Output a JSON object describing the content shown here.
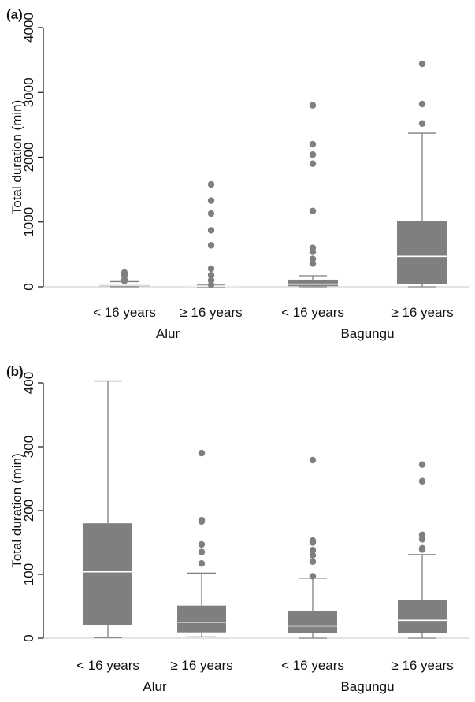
{
  "colors": {
    "box_fill": "#7f7f7f",
    "median_line": "#ffffff",
    "outlier": "#7f7f7f",
    "whisker": "#7f7f7f",
    "axis": "#111111",
    "baseline": "#c8c8c8"
  },
  "chart_data": [
    {
      "type": "box",
      "panel_label": "(a)",
      "ylabel": "Total duration (min)",
      "ylim": [
        0,
        4000
      ],
      "yticks": [
        0,
        1000,
        2000,
        3000,
        4000
      ],
      "grid": false,
      "groups": [
        "Alur",
        "Bagungu"
      ],
      "categories": [
        "< 16 years",
        "≥ 16 years",
        "< 16 years",
        "≥ 16 years"
      ],
      "category_group": [
        0,
        0,
        1,
        1
      ],
      "boxes": [
        {
          "min": 0,
          "q1": 10,
          "median": 25,
          "q3": 40,
          "max": 80,
          "outliers": [
            90,
            110,
            180,
            220
          ]
        },
        {
          "min": 0,
          "q1": 5,
          "median": 12,
          "q3": 20,
          "max": 25,
          "outliers": [
            30,
            100,
            180,
            280,
            640,
            870,
            1130,
            1330,
            1580
          ]
        },
        {
          "min": 0,
          "q1": 10,
          "median": 40,
          "q3": 110,
          "max": 170,
          "outliers": [
            360,
            430,
            540,
            600,
            1170,
            1900,
            2040,
            2200,
            2800
          ]
        },
        {
          "min": 0,
          "q1": 40,
          "median": 470,
          "q3": 1010,
          "max": 2370,
          "outliers": [
            2520,
            2820,
            3440
          ]
        }
      ]
    },
    {
      "type": "box",
      "panel_label": "(b)",
      "ylabel": "Total duration (min)",
      "ylim": [
        0,
        400
      ],
      "yticks": [
        0,
        100,
        200,
        300,
        400
      ],
      "grid": false,
      "groups": [
        "Alur",
        "Bagungu"
      ],
      "categories": [
        "< 16 years",
        "≥ 16 years",
        "< 16 years",
        "≥ 16 years"
      ],
      "category_group": [
        0,
        0,
        1,
        1
      ],
      "boxes": [
        {
          "min": 1,
          "q1": 21,
          "median": 104,
          "q3": 180,
          "max": 403,
          "outliers": []
        },
        {
          "min": 2,
          "q1": 9,
          "median": 25,
          "q3": 51,
          "max": 102,
          "outliers": [
            117,
            135,
            147,
            183,
            185,
            290
          ]
        },
        {
          "min": 0,
          "q1": 8,
          "median": 19,
          "q3": 43,
          "max": 94,
          "outliers": [
            97,
            120,
            130,
            138,
            150,
            153,
            279
          ]
        },
        {
          "min": 0,
          "q1": 8,
          "median": 28,
          "q3": 60,
          "max": 131,
          "outliers": [
            139,
            141,
            155,
            162,
            246,
            272
          ]
        }
      ]
    }
  ]
}
